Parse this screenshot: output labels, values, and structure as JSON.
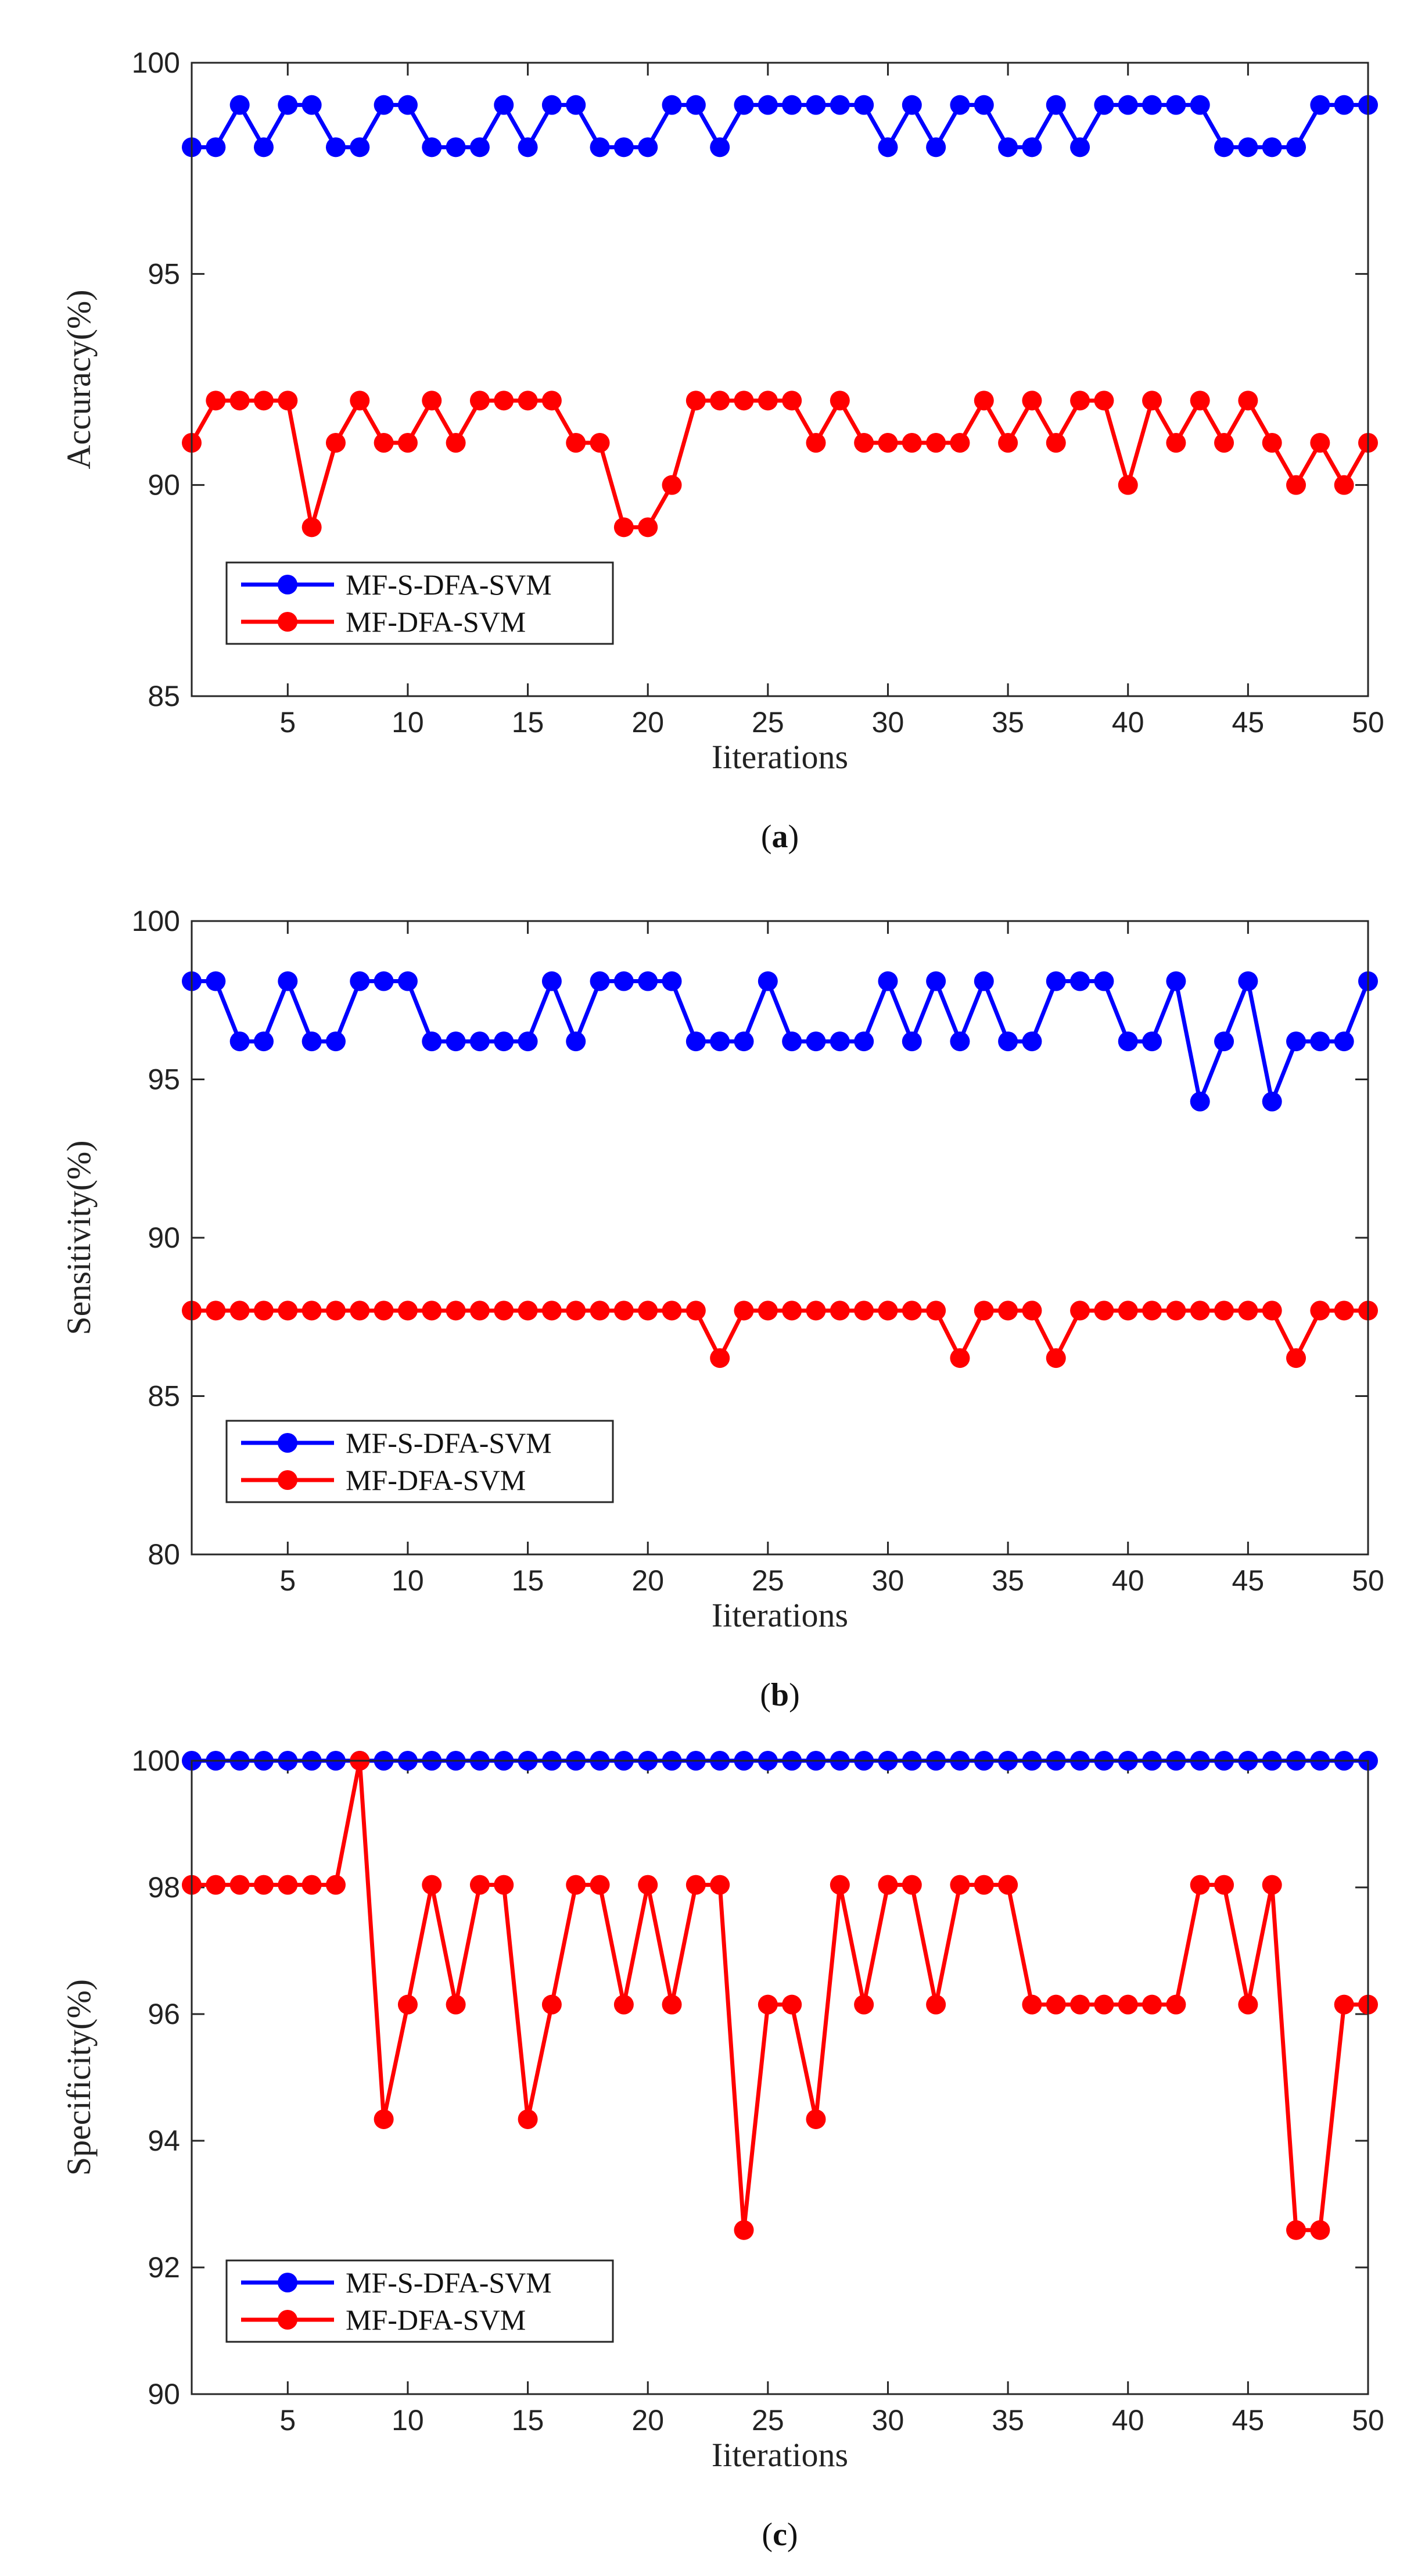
{
  "chart_data": [
    {
      "type": "line",
      "caption_letter": "a",
      "xlabel": "Iiterations",
      "ylabel": "Accuracy(%)",
      "xlim": [
        1,
        50
      ],
      "ylim": [
        85,
        100
      ],
      "xticks": [
        5,
        10,
        15,
        20,
        25,
        30,
        35,
        40,
        45,
        50
      ],
      "yticks": [
        85,
        90,
        95,
        100
      ],
      "x": [
        1,
        2,
        3,
        4,
        5,
        6,
        7,
        8,
        9,
        10,
        11,
        12,
        13,
        14,
        15,
        16,
        17,
        18,
        19,
        20,
        21,
        22,
        23,
        24,
        25,
        26,
        27,
        28,
        29,
        30,
        31,
        32,
        33,
        34,
        35,
        36,
        37,
        38,
        39,
        40,
        41,
        42,
        43,
        44,
        45,
        46,
        47,
        48,
        49,
        50
      ],
      "series": [
        {
          "name": "MF-S-DFA-SVM",
          "color": "#0000ff",
          "values": [
            98,
            98,
            99,
            98,
            99,
            99,
            98,
            98,
            99,
            99,
            98,
            98,
            98,
            99,
            98,
            99,
            99,
            98,
            98,
            98,
            99,
            99,
            98,
            99,
            99,
            99,
            99,
            99,
            99,
            98,
            99,
            98,
            99,
            99,
            98,
            98,
            99,
            98,
            99,
            99,
            99,
            99,
            99,
            98,
            98,
            98,
            98,
            99,
            99,
            99
          ]
        },
        {
          "name": "MF-DFA-SVM",
          "color": "#ff0000",
          "values": [
            91,
            92,
            92,
            92,
            92,
            89,
            91,
            92,
            91,
            91,
            92,
            91,
            92,
            92,
            92,
            92,
            91,
            91,
            89,
            89,
            90,
            92,
            92,
            92,
            92,
            92,
            91,
            92,
            91,
            91,
            91,
            91,
            91,
            92,
            91,
            92,
            91,
            92,
            92,
            90,
            92,
            91,
            92,
            91,
            92,
            91,
            90,
            91,
            90,
            91
          ]
        }
      ],
      "legend_position": "bottom-left"
    },
    {
      "type": "line",
      "caption_letter": "b",
      "xlabel": "Iiterations",
      "ylabel": "Sensitivity(%)",
      "xlim": [
        1,
        50
      ],
      "ylim": [
        80,
        100
      ],
      "xticks": [
        5,
        10,
        15,
        20,
        25,
        30,
        35,
        40,
        45,
        50
      ],
      "yticks": [
        80,
        85,
        90,
        95,
        100
      ],
      "x": [
        1,
        2,
        3,
        4,
        5,
        6,
        7,
        8,
        9,
        10,
        11,
        12,
        13,
        14,
        15,
        16,
        17,
        18,
        19,
        20,
        21,
        22,
        23,
        24,
        25,
        26,
        27,
        28,
        29,
        30,
        31,
        32,
        33,
        34,
        35,
        36,
        37,
        38,
        39,
        40,
        41,
        42,
        43,
        44,
        45,
        46,
        47,
        48,
        49,
        50
      ],
      "series": [
        {
          "name": "MF-S-DFA-SVM",
          "color": "#0000ff",
          "values": [
            98.1,
            98.1,
            96.2,
            96.2,
            98.1,
            96.2,
            96.2,
            98.1,
            98.1,
            98.1,
            96.2,
            96.2,
            96.2,
            96.2,
            96.2,
            98.1,
            96.2,
            98.1,
            98.1,
            98.1,
            98.1,
            96.2,
            96.2,
            96.2,
            98.1,
            96.2,
            96.2,
            96.2,
            96.2,
            98.1,
            96.2,
            98.1,
            96.2,
            98.1,
            96.2,
            96.2,
            98.1,
            98.1,
            98.1,
            96.2,
            96.2,
            98.1,
            94.3,
            96.2,
            98.1,
            94.3,
            96.2,
            96.2,
            96.2,
            98.1
          ]
        },
        {
          "name": "MF-DFA-SVM",
          "color": "#ff0000",
          "values": [
            87.7,
            87.7,
            87.7,
            87.7,
            87.7,
            87.7,
            87.7,
            87.7,
            87.7,
            87.7,
            87.7,
            87.7,
            87.7,
            87.7,
            87.7,
            87.7,
            87.7,
            87.7,
            87.7,
            87.7,
            87.7,
            87.7,
            86.2,
            87.7,
            87.7,
            87.7,
            87.7,
            87.7,
            87.7,
            87.7,
            87.7,
            87.7,
            86.2,
            87.7,
            87.7,
            87.7,
            86.2,
            87.7,
            87.7,
            87.7,
            87.7,
            87.7,
            87.7,
            87.7,
            87.7,
            87.7,
            86.2,
            87.7,
            87.7,
            87.7
          ]
        }
      ],
      "legend_position": "bottom-left"
    },
    {
      "type": "line",
      "caption_letter": "c",
      "xlabel": "Iiterations",
      "ylabel": "Specificity(%)",
      "xlim": [
        1,
        50
      ],
      "ylim": [
        90,
        100
      ],
      "xticks": [
        5,
        10,
        15,
        20,
        25,
        30,
        35,
        40,
        45,
        50
      ],
      "yticks": [
        90,
        92,
        94,
        96,
        98,
        100
      ],
      "x": [
        1,
        2,
        3,
        4,
        5,
        6,
        7,
        8,
        9,
        10,
        11,
        12,
        13,
        14,
        15,
        16,
        17,
        18,
        19,
        20,
        21,
        22,
        23,
        24,
        25,
        26,
        27,
        28,
        29,
        30,
        31,
        32,
        33,
        34,
        35,
        36,
        37,
        38,
        39,
        40,
        41,
        42,
        43,
        44,
        45,
        46,
        47,
        48,
        49,
        50
      ],
      "series": [
        {
          "name": "MF-S-DFA-SVM",
          "color": "#0000ff",
          "values": [
            100,
            100,
            100,
            100,
            100,
            100,
            100,
            100,
            100,
            100,
            100,
            100,
            100,
            100,
            100,
            100,
            100,
            100,
            100,
            100,
            100,
            100,
            100,
            100,
            100,
            100,
            100,
            100,
            100,
            100,
            100,
            100,
            100,
            100,
            100,
            100,
            100,
            100,
            100,
            100,
            100,
            100,
            100,
            100,
            100,
            100,
            100,
            100,
            100,
            100
          ]
        },
        {
          "name": "MF-DFA-SVM",
          "color": "#ff0000",
          "values": [
            98.04,
            98.04,
            98.04,
            98.04,
            98.04,
            98.04,
            98.04,
            100,
            94.34,
            96.15,
            98.04,
            96.15,
            98.04,
            98.04,
            94.34,
            96.15,
            98.04,
            98.04,
            96.15,
            98.04,
            96.15,
            98.04,
            98.04,
            92.59,
            96.15,
            96.15,
            94.34,
            98.04,
            96.15,
            98.04,
            98.04,
            96.15,
            98.04,
            98.04,
            98.04,
            96.15,
            96.15,
            96.15,
            96.15,
            96.15,
            96.15,
            96.15,
            98.04,
            98.04,
            96.15,
            98.04,
            92.59,
            92.59,
            96.15,
            96.15
          ]
        }
      ],
      "legend_position": "bottom-left"
    }
  ]
}
